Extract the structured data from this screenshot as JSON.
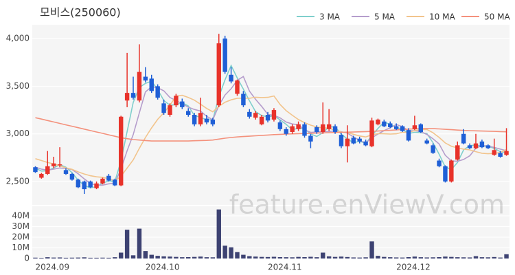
{
  "chart_data": [
    {
      "type": "candlestick",
      "title": "모비스(250060)",
      "watermark": "feature.enViewV.com",
      "up_color": "#e8322a",
      "down_color": "#1f5fd6",
      "grid": true,
      "legend": "top-right",
      "ylim": [
        2255,
        4145
      ],
      "yticks": [
        {
          "value": 2500,
          "label": "2,500"
        },
        {
          "value": 3000,
          "label": "3,000"
        },
        {
          "value": 3500,
          "label": "3,500"
        },
        {
          "value": 4000,
          "label": "4,000"
        }
      ],
      "open": [
        2650,
        2540,
        2580,
        2660,
        2670,
        2620,
        2580,
        2520,
        2500,
        2500,
        2430,
        2480,
        2560,
        2520,
        2460,
        3350,
        3430,
        3350,
        3600,
        3580,
        3500,
        3320,
        3200,
        3300,
        3340,
        3240,
        3200,
        3100,
        3160,
        3150,
        3300,
        4000,
        3620,
        3420,
        3420,
        3230,
        3170,
        3100,
        3200,
        3150,
        3120,
        3050,
        3020,
        3050,
        3100,
        2980,
        3070,
        3020,
        3050,
        3080,
        2990,
        2870,
        2960,
        2950,
        2920,
        2870,
        3100,
        3130,
        3110,
        3080,
        3080,
        3040,
        3050,
        3100,
        2930,
        2880,
        2720,
        2660,
        2500,
        2730,
        3000,
        2880,
        2850,
        2920,
        2880,
        2780,
        2800,
        2780
      ],
      "high": [
        2660,
        2590,
        2820,
        2760,
        2860,
        2640,
        2590,
        2530,
        2510,
        2510,
        2500,
        2540,
        2580,
        2530,
        3190,
        3850,
        3600,
        3940,
        3700,
        3620,
        3520,
        3360,
        3320,
        3420,
        3370,
        3270,
        3220,
        3380,
        3200,
        3170,
        4050,
        4030,
        3700,
        3570,
        3450,
        3260,
        3240,
        3200,
        3230,
        3270,
        3140,
        3070,
        3100,
        3130,
        3120,
        3000,
        3090,
        3330,
        3260,
        3100,
        3010,
        3090,
        2980,
        2970,
        2940,
        3170,
        3160,
        3150,
        3130,
        3110,
        3090,
        3060,
        3190,
        3110,
        2950,
        2900,
        2740,
        2670,
        2730,
        2920,
        3050,
        2900,
        3000,
        2940,
        2890,
        2950,
        2820,
        3060
      ],
      "low": [
        2590,
        2530,
        2570,
        2640,
        2650,
        2570,
        2510,
        2430,
        2370,
        2430,
        2420,
        2470,
        2500,
        2450,
        2450,
        3280,
        3360,
        3330,
        3540,
        3430,
        3360,
        3200,
        3180,
        3280,
        3260,
        3180,
        3080,
        3080,
        3100,
        3080,
        3280,
        3630,
        3530,
        3400,
        3280,
        3160,
        3150,
        3090,
        3120,
        3130,
        3030,
        2980,
        3000,
        3030,
        2960,
        2850,
        3000,
        3000,
        3030,
        3000,
        2850,
        2700,
        2890,
        2900,
        2870,
        2860,
        3090,
        3070,
        3060,
        3040,
        3020,
        2920,
        3040,
        3010,
        2890,
        2790,
        2650,
        2490,
        2490,
        2720,
        2890,
        2840,
        2840,
        2850,
        2840,
        2770,
        2750,
        2770
      ],
      "close": [
        2600,
        2580,
        2660,
        2690,
        2680,
        2580,
        2520,
        2440,
        2420,
        2440,
        2480,
        2530,
        2510,
        2460,
        3180,
        3430,
        3380,
        3650,
        3560,
        3450,
        3380,
        3220,
        3300,
        3400,
        3280,
        3200,
        3100,
        3220,
        3120,
        3100,
        3950,
        3650,
        3550,
        3560,
        3300,
        3180,
        3220,
        3180,
        3140,
        3250,
        3050,
        3000,
        3080,
        3100,
        2980,
        2920,
        3020,
        3100,
        3100,
        3020,
        2870,
        2950,
        2900,
        2920,
        2880,
        3140,
        3150,
        3080,
        3070,
        3050,
        3030,
        2930,
        3090,
        3020,
        2900,
        2800,
        2660,
        2500,
        2720,
        2880,
        2900,
        2850,
        2900,
        2860,
        2850,
        2830,
        2760,
        2820
      ],
      "series": [
        {
          "name": "3 MA",
          "color": "#7fcfcc",
          "values": [
            2640,
            2610,
            2613,
            2643,
            2677,
            2650,
            2593,
            2513,
            2460,
            2433,
            2447,
            2483,
            2507,
            2500,
            2717,
            3023,
            3330,
            3487,
            3530,
            3553,
            3463,
            3350,
            3300,
            3307,
            3327,
            3293,
            3193,
            3173,
            3147,
            3147,
            3390,
            3567,
            3717,
            3587,
            3470,
            3347,
            3233,
            3193,
            3180,
            3190,
            3147,
            3100,
            3043,
            3060,
            3053,
            3000,
            2973,
            3013,
            3073,
            3073,
            2997,
            2947,
            2907,
            2923,
            2900,
            2980,
            3057,
            3123,
            3100,
            3067,
            3050,
            3003,
            3017,
            3013,
            3003,
            2907,
            2787,
            2653,
            2627,
            2700,
            2833,
            2877,
            2883,
            2870,
            2870,
            2847,
            2813,
            2803
          ]
        },
        {
          "name": "5 MA",
          "color": "#b59dcc",
          "values": [
            2650,
            2630,
            2620,
            2630,
            2642,
            2638,
            2626,
            2582,
            2528,
            2480,
            2460,
            2462,
            2476,
            2484,
            2632,
            2822,
            2992,
            3220,
            3440,
            3494,
            3484,
            3452,
            3382,
            3350,
            3316,
            3280,
            3256,
            3240,
            3184,
            3148,
            3298,
            3408,
            3474,
            3562,
            3602,
            3448,
            3362,
            3288,
            3204,
            3194,
            3168,
            3124,
            3104,
            3096,
            3042,
            3016,
            3020,
            3024,
            3024,
            3032,
            3022,
            3008,
            2968,
            2932,
            2904,
            2958,
            2998,
            3034,
            3064,
            3098,
            3076,
            3032,
            3034,
            3024,
            2994,
            2948,
            2894,
            2776,
            2716,
            2712,
            2732,
            2770,
            2850,
            2878,
            2872,
            2858,
            2840,
            2824
          ]
        },
        {
          "name": "10 MA",
          "color": "#f2c48c",
          "values": [
            2740,
            2720,
            2700,
            2685,
            2665,
            2644,
            2628,
            2601,
            2579,
            2561,
            2549,
            2544,
            2529,
            2506,
            2556,
            2641,
            2727,
            2848,
            2962,
            3063,
            3153,
            3222,
            3301,
            3395,
            3405,
            3382,
            3354,
            3311,
            3267,
            3232,
            3289,
            3332,
            3357,
            3373,
            3375,
            3373,
            3385,
            3381,
            3383,
            3398,
            3308,
            3243,
            3196,
            3150,
            3118,
            3092,
            3072,
            3064,
            3060,
            3037,
            3019,
            3014,
            2996,
            2978,
            2968,
            2990,
            3003,
            3001,
            2998,
            3001,
            3017,
            3015,
            3034,
            3044,
            3046,
            3012,
            2963,
            2905,
            2870,
            2853,
            2840,
            2832,
            2813,
            2797,
            2792,
            2795,
            2805,
            2837
          ]
        },
        {
          "name": "50 MA",
          "color": "#f4917c",
          "values": [
            3170,
            3155,
            3140,
            3125,
            3110,
            3095,
            3080,
            3065,
            3050,
            3035,
            3020,
            3005,
            2990,
            2975,
            2960,
            2950,
            2940,
            2935,
            2930,
            2925,
            2925,
            2925,
            2925,
            2925,
            2925,
            2925,
            2928,
            2930,
            2932,
            2935,
            2945,
            2955,
            2962,
            2968,
            2972,
            2976,
            2980,
            2984,
            2988,
            2992,
            2995,
            2998,
            3000,
            3002,
            3004,
            3006,
            3008,
            3010,
            3012,
            3014,
            3016,
            3018,
            3020,
            3022,
            3024,
            3026,
            3030,
            3034,
            3038,
            3042,
            3046,
            3050,
            3052,
            3054,
            3055,
            3055,
            3052,
            3048,
            3044,
            3040,
            3036,
            3034,
            3032,
            3030,
            3028,
            3026,
            3024,
            3022
          ]
        }
      ]
    },
    {
      "type": "bar",
      "color": "#3d4272",
      "grid": true,
      "categories": [
        "2024.09",
        null,
        null,
        null,
        null,
        null,
        null,
        null,
        null,
        null,
        null,
        null,
        null,
        null,
        null,
        null,
        null,
        null,
        "2024.10",
        null,
        null,
        null,
        null,
        null,
        null,
        null,
        null,
        null,
        null,
        null,
        null,
        null,
        null,
        null,
        null,
        null,
        null,
        null,
        "2024.11",
        null,
        null,
        null,
        null,
        null,
        null,
        null,
        null,
        null,
        null,
        null,
        null,
        null,
        null,
        null,
        null,
        null,
        null,
        null,
        null,
        "2024.12",
        null,
        null,
        null,
        null,
        null,
        null,
        null,
        null,
        null,
        null,
        null,
        null,
        null,
        null,
        null,
        null,
        null,
        null
      ],
      "ylim": [
        0,
        49000000
      ],
      "yticks": [
        0,
        {
          "value": 10000000,
          "label": "10M"
        },
        {
          "value": 20000000,
          "label": "20M"
        },
        {
          "value": 30000000,
          "label": "30M"
        },
        {
          "value": 40000000,
          "label": "40M"
        }
      ],
      "values": [
        800000,
        600000,
        1200000,
        900000,
        1000000,
        700000,
        800000,
        900000,
        1100000,
        700000,
        700000,
        800000,
        700000,
        1200000,
        5500000,
        27000000,
        3000000,
        28000000,
        7000000,
        3500000,
        2500000,
        2000000,
        1800000,
        1500000,
        1200000,
        1300000,
        1500000,
        1800000,
        1200000,
        1100000,
        46000000,
        12000000,
        10500000,
        6000000,
        3500000,
        2200000,
        1800000,
        1500000,
        1400000,
        1600000,
        1300000,
        1200000,
        1100000,
        1500000,
        1300000,
        1600000,
        1200000,
        5500000,
        2000000,
        1500000,
        1800000,
        1400000,
        1000000,
        900000,
        1100000,
        16000000,
        2500000,
        1500000,
        1200000,
        1000000,
        900000,
        1300000,
        1800000,
        1200000,
        1000000,
        1100000,
        1300000,
        1800000,
        1500000,
        1200000,
        1100000,
        1000000,
        2200000,
        1200000,
        1100000,
        1400000,
        900000,
        4000000
      ]
    }
  ]
}
